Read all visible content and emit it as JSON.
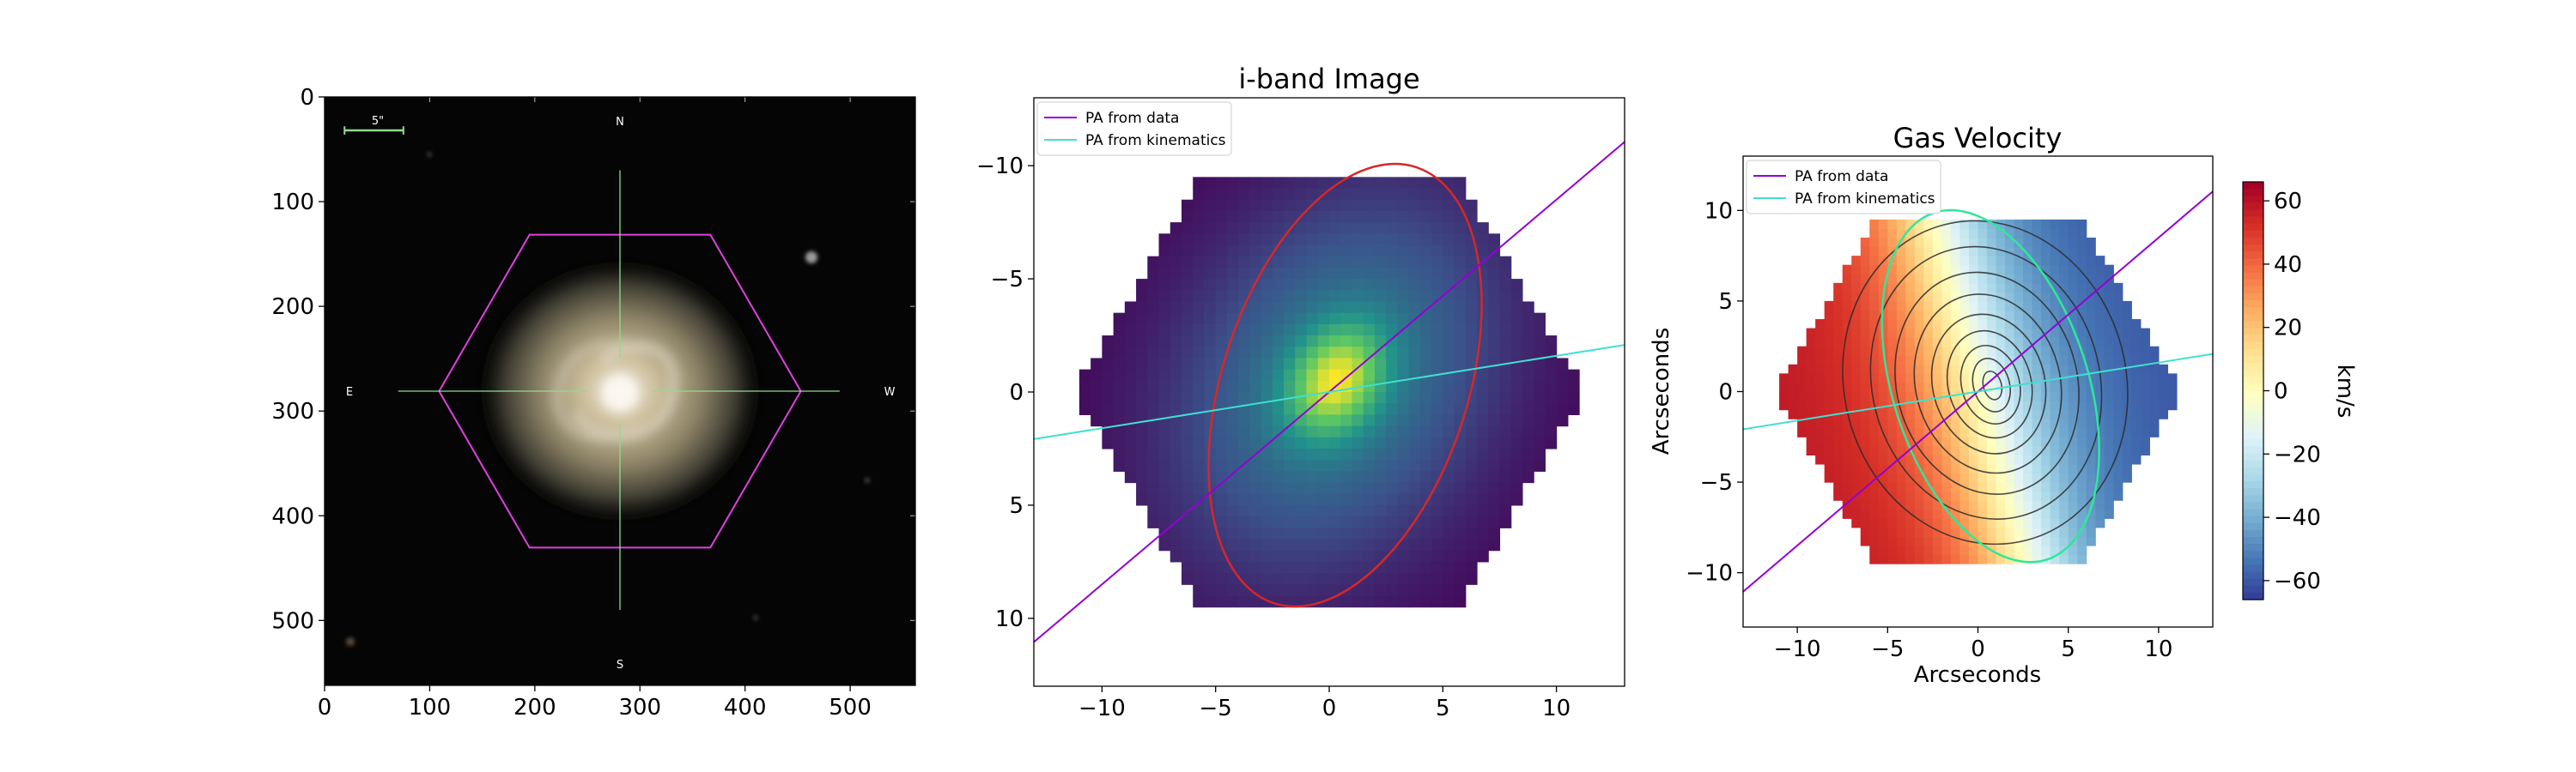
{
  "chart_data": [
    {
      "type": "image",
      "title": "",
      "xlim": [
        0,
        562
      ],
      "ylim": [
        562,
        0
      ],
      "xticks": [
        0,
        100,
        200,
        300,
        400,
        500
      ],
      "yticks": [
        0,
        100,
        200,
        300,
        400,
        500
      ],
      "compass": {
        "north": "N",
        "south": "S",
        "east": "E",
        "west": "W"
      },
      "scale_bar_label": "5\"",
      "center": [
        281,
        281
      ],
      "hexagon_radius": 172,
      "colors": {
        "hexagon": "#e040e0",
        "crosshair": "#8fdc8f",
        "scale_bar": "#8fdc8f"
      }
    },
    {
      "type": "heatmap",
      "title": "i-band Image",
      "xlim": [
        -13,
        13
      ],
      "ylim": [
        13,
        -13
      ],
      "xticks": [
        -10,
        -5,
        0,
        5,
        10
      ],
      "yticks": [
        -10,
        -5,
        0,
        5,
        10
      ],
      "colormap": "viridis",
      "hexagon_radius_arcsec": 11.2,
      "peak": [
        0.3,
        -0.5
      ],
      "ellipse": {
        "cx": 0.7,
        "cy": -0.3,
        "a": 5.4,
        "b": 10.1,
        "angle_deg": 18,
        "color": "#d62728"
      },
      "series": [
        {
          "name": "PA from data",
          "color": "#9400d3",
          "slope": 0.85
        },
        {
          "name": "PA from kinematics",
          "color": "#40e0d0",
          "slope": 0.16
        }
      ]
    },
    {
      "type": "heatmap",
      "title": "Gas Velocity",
      "xlabel": "Arcseconds",
      "ylabel": "Arcseconds",
      "xlim": [
        -13,
        13
      ],
      "ylim": [
        -13,
        13
      ],
      "xticks": [
        -10,
        -5,
        0,
        5,
        10
      ],
      "yticks": [
        10,
        5,
        0,
        -5,
        -10
      ],
      "colormap": "RdYlBu_r",
      "colorbar": {
        "label": "km/s",
        "range": [
          -66,
          66
        ],
        "ticks": [
          60,
          40,
          20,
          0,
          -20,
          -40,
          -60
        ]
      },
      "hexagon_radius_arcsec": 11.2,
      "ellipse": {
        "cx": 0.7,
        "cy": 0.3,
        "a": 5.4,
        "b": 10.1,
        "angle_deg": -18,
        "color": "#2ee89a"
      },
      "contour_levels": [
        1,
        2,
        3,
        4,
        5,
        6,
        7,
        8,
        9
      ],
      "series": [
        {
          "name": "PA from data",
          "color": "#9400d3",
          "slope": 0.85
        },
        {
          "name": "PA from kinematics",
          "color": "#40e0d0",
          "slope": 0.16
        }
      ]
    }
  ]
}
